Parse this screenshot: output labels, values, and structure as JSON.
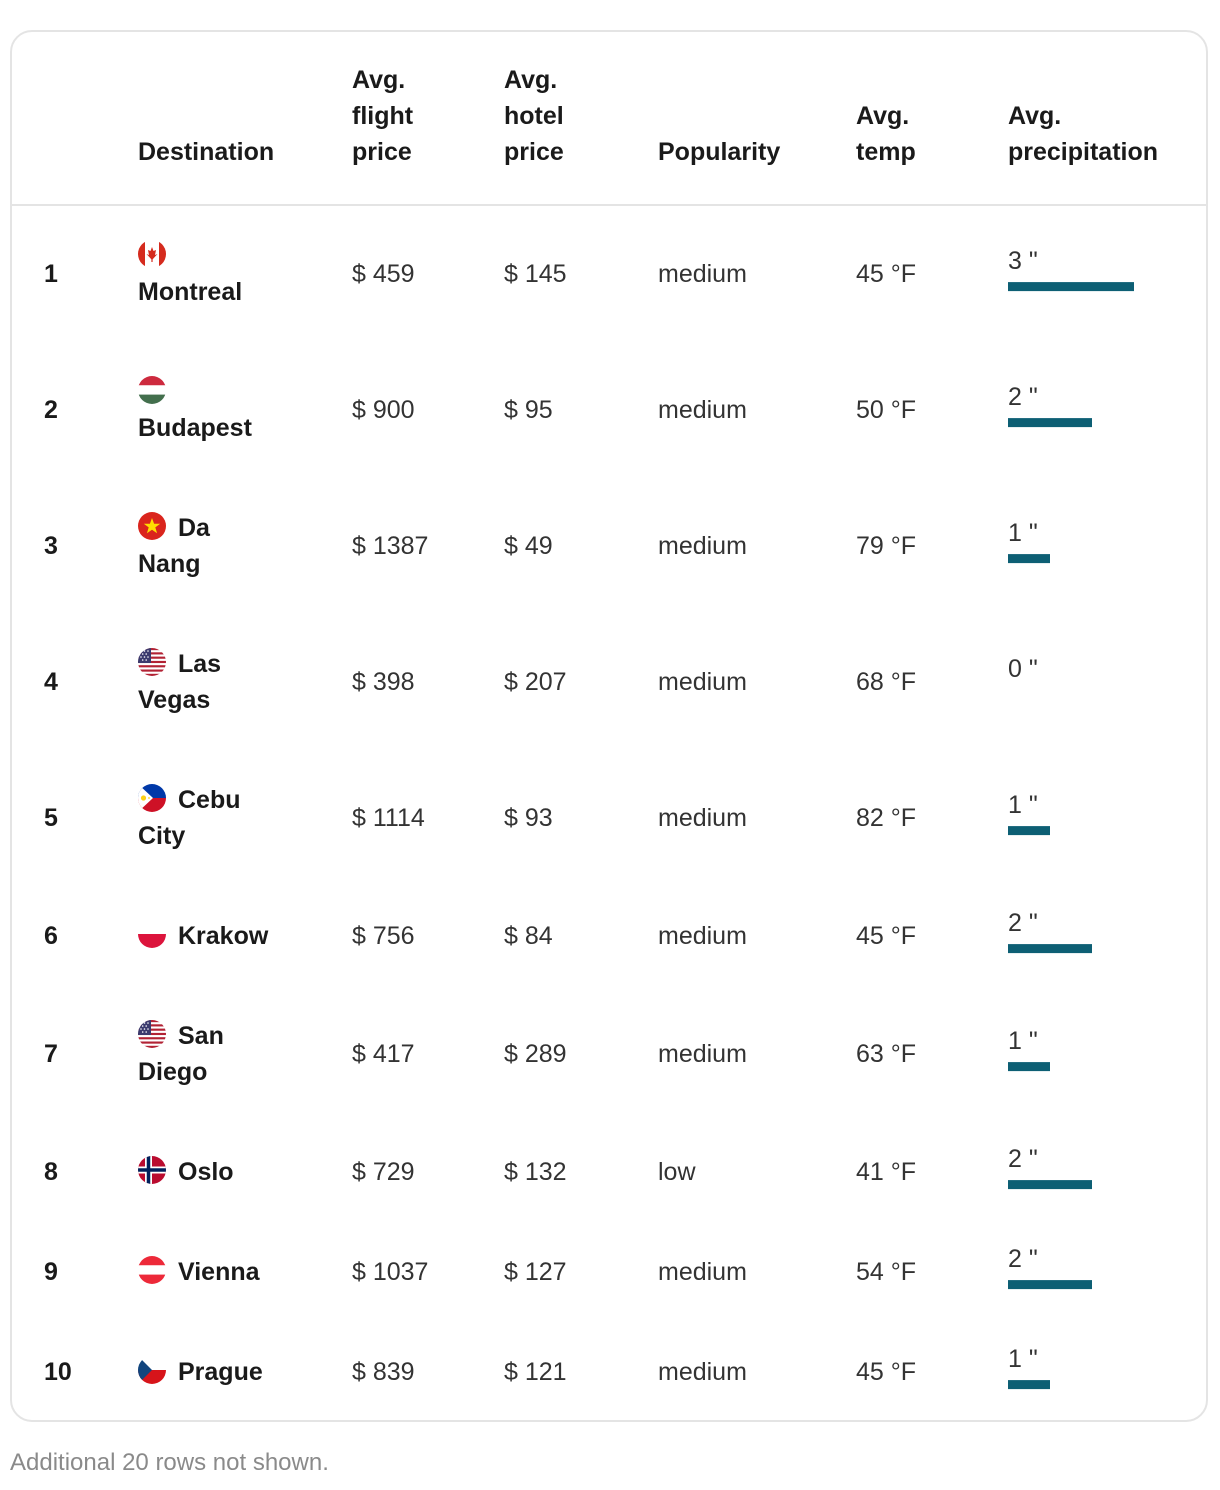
{
  "table": {
    "headers": {
      "destination": "Destination",
      "flight": [
        "Avg.",
        "flight",
        "price"
      ],
      "hotel": [
        "Avg.",
        "hotel",
        "price"
      ],
      "popularity": "Popularity",
      "temp": [
        "Avg.",
        "temp"
      ],
      "precip": [
        "Avg.",
        "precipitation"
      ]
    },
    "rows": [
      {
        "rank": "1",
        "flag": "canada-flag-icon",
        "name_line1": "",
        "name_line2": "Montreal",
        "flight": "$ 459",
        "hotel": "$ 145",
        "popularity": "medium",
        "temp": "45 °F",
        "precip": "3 \"",
        "precip_value": 3
      },
      {
        "rank": "2",
        "flag": "hungary-flag-icon",
        "name_line1": "",
        "name_line2": "Budapest",
        "flight": "$ 900",
        "hotel": "$ 95",
        "popularity": "medium",
        "temp": "50 °F",
        "precip": "2 \"",
        "precip_value": 2
      },
      {
        "rank": "3",
        "flag": "vietnam-flag-icon",
        "name_line1": "Da",
        "name_line2": "Nang",
        "flight": "$ 1387",
        "hotel": "$ 49",
        "popularity": "medium",
        "temp": "79 °F",
        "precip": "1 \"",
        "precip_value": 1
      },
      {
        "rank": "4",
        "flag": "usa-flag-icon",
        "name_line1": "Las",
        "name_line2": "Vegas",
        "flight": "$ 398",
        "hotel": "$ 207",
        "popularity": "medium",
        "temp": "68 °F",
        "precip": "0 \"",
        "precip_value": 0
      },
      {
        "rank": "5",
        "flag": "philippines-flag-icon",
        "name_line1": "Cebu",
        "name_line2": "City",
        "flight": "$ 1114",
        "hotel": "$ 93",
        "popularity": "medium",
        "temp": "82 °F",
        "precip": "1 \"",
        "precip_value": 1
      },
      {
        "rank": "6",
        "flag": "poland-flag-icon",
        "name_line1": "Krakow",
        "name_line2": "",
        "flight": "$ 756",
        "hotel": "$ 84",
        "popularity": "medium",
        "temp": "45 °F",
        "precip": "2 \"",
        "precip_value": 2
      },
      {
        "rank": "7",
        "flag": "usa-flag-icon",
        "name_line1": "San",
        "name_line2": "Diego",
        "flight": "$ 417",
        "hotel": "$ 289",
        "popularity": "medium",
        "temp": "63 °F",
        "precip": "1 \"",
        "precip_value": 1
      },
      {
        "rank": "8",
        "flag": "norway-flag-icon",
        "name_line1": "Oslo",
        "name_line2": "",
        "flight": "$ 729",
        "hotel": "$ 132",
        "popularity": "low",
        "temp": "41 °F",
        "precip": "2 \"",
        "precip_value": 2
      },
      {
        "rank": "9",
        "flag": "austria-flag-icon",
        "name_line1": "Vienna",
        "name_line2": "",
        "flight": "$ 1037",
        "hotel": "$ 127",
        "popularity": "medium",
        "temp": "54 °F",
        "precip": "2 \"",
        "precip_value": 2
      },
      {
        "rank": "10",
        "flag": "czech-flag-icon",
        "name_line1": "Prague",
        "name_line2": "",
        "flight": "$ 839",
        "hotel": "$ 121",
        "popularity": "medium",
        "temp": "45 °F",
        "precip": "1 \"",
        "precip_value": 1
      }
    ]
  },
  "colors": {
    "precip_bar": "#0d5f74",
    "border": "#e4e4e4",
    "footnote": "#8a8a8a"
  },
  "footnote": "Additional 20 rows not shown."
}
